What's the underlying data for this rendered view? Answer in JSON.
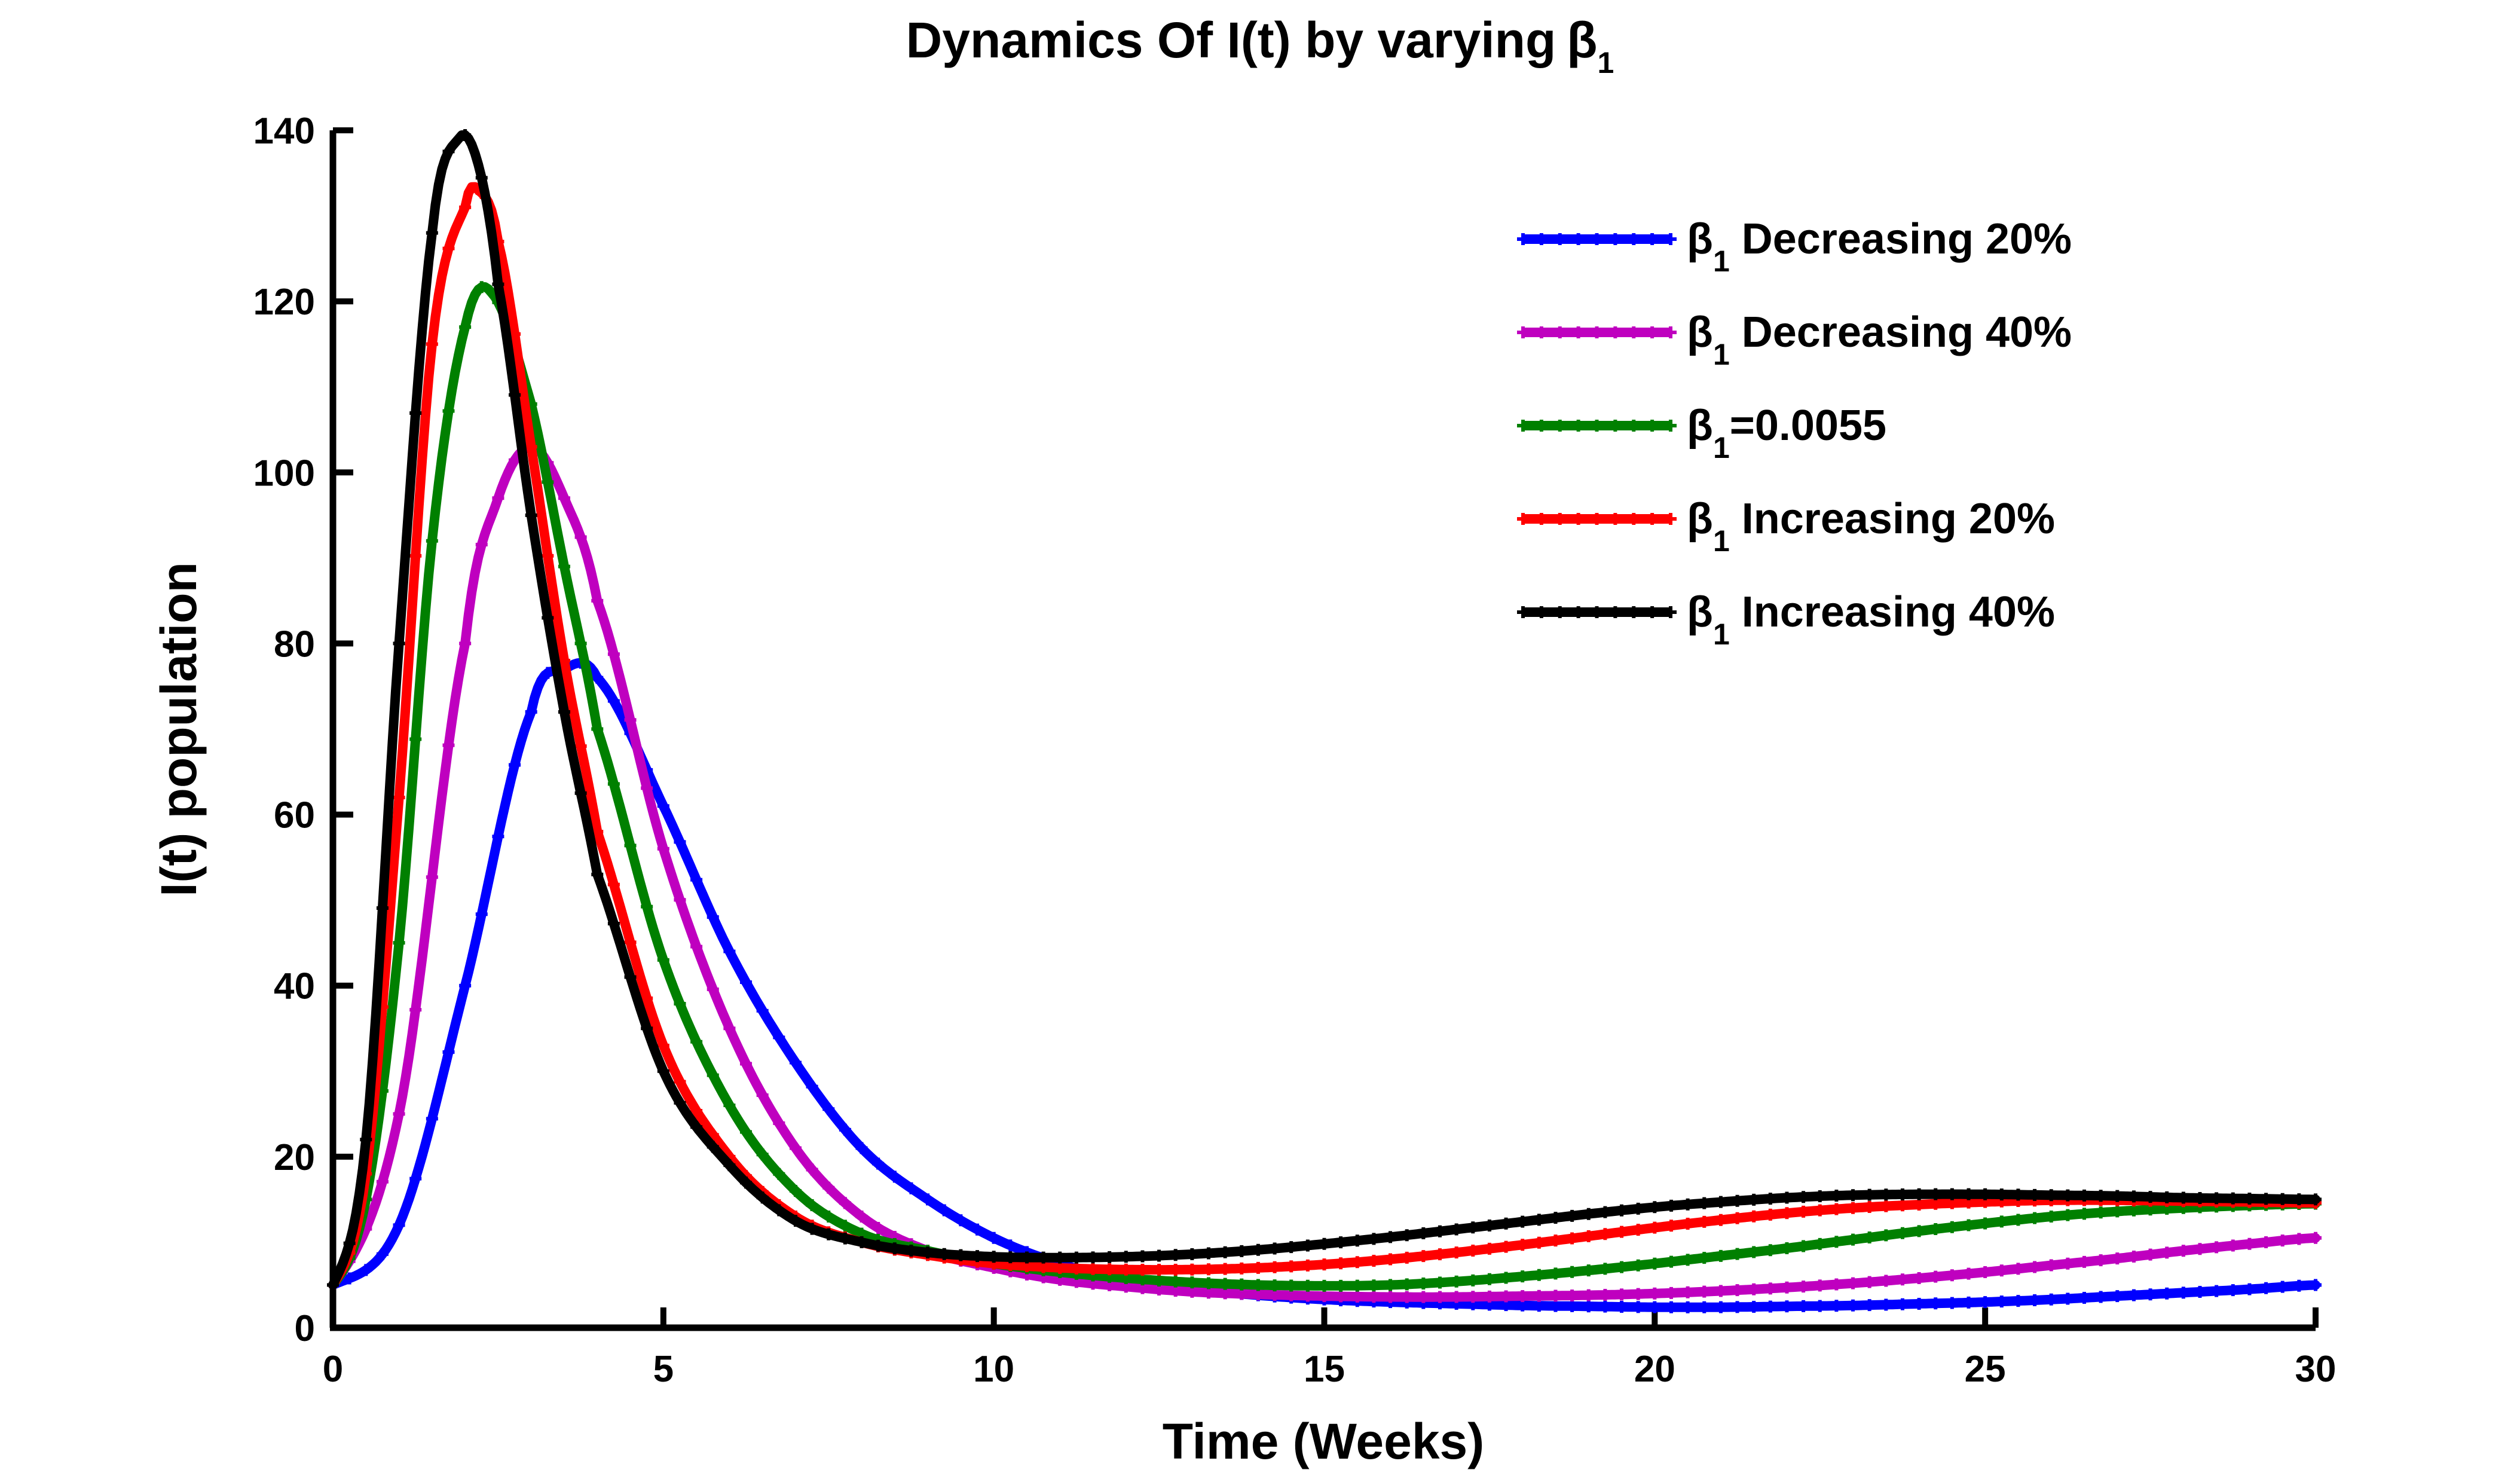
{
  "chart_data": {
    "type": "line",
    "title": "Dynamics Of I(t) by varying",
    "title_symbol": "β",
    "title_subscript": "1",
    "xlabel": "Time (Weeks)",
    "ylabel": "I(t) population",
    "xlim": [
      0,
      30
    ],
    "ylim": [
      0,
      140
    ],
    "xticks": [
      0,
      5,
      10,
      15,
      20,
      25,
      30
    ],
    "yticks": [
      0,
      20,
      40,
      60,
      80,
      100,
      120,
      140
    ],
    "grid": false,
    "legend_position": "top-right",
    "marker": "plus",
    "legend": {
      "symbol": "β",
      "subscript": "1"
    },
    "series": [
      {
        "name": "β1 Decreasing 20%",
        "label_text": " Decreasing 20%",
        "color": "#0000ff",
        "x": [
          0,
          1,
          2,
          3,
          3.5,
          4,
          5,
          6,
          7,
          8,
          9,
          10,
          11,
          12,
          13,
          14,
          15,
          16,
          17,
          18,
          19,
          20,
          21,
          22,
          23,
          24,
          25,
          26,
          27,
          28,
          29,
          30
        ],
        "y": [
          5,
          12,
          40,
          72,
          77,
          76,
          61,
          44,
          31,
          21,
          15,
          10.5,
          7.5,
          5.5,
          4.5,
          3.8,
          3.3,
          3.0,
          2.8,
          2.6,
          2.5,
          2.4,
          2.4,
          2.5,
          2.6,
          2.8,
          3.0,
          3.3,
          3.7,
          4.1,
          4.5,
          5.0
        ]
      },
      {
        "name": "β1 Decreasing 40%",
        "label_text": " Decreasing 40%",
        "color": "#bf00bf",
        "x": [
          0,
          1,
          2,
          2.5,
          3,
          3.5,
          4,
          5,
          6,
          7,
          8,
          9,
          10,
          11,
          12,
          13,
          14,
          15,
          16,
          17,
          18,
          19,
          20,
          21,
          22,
          23,
          24,
          25,
          26,
          27,
          28,
          29,
          30
        ],
        "y": [
          5,
          25,
          80,
          97,
          103,
          97,
          85,
          56,
          35,
          21,
          13,
          9,
          7,
          5.6,
          4.8,
          4.2,
          3.9,
          3.7,
          3.6,
          3.6,
          3.7,
          3.8,
          4.0,
          4.3,
          4.7,
          5.2,
          5.8,
          6.5,
          7.3,
          8.1,
          9.0,
          9.8,
          10.5
        ]
      },
      {
        "name": "β1=0.0055",
        "label_text": "=0.0055",
        "color": "#008000",
        "x": [
          0,
          0.5,
          1,
          1.5,
          2,
          2.4,
          3,
          3.5,
          4,
          5,
          6,
          7,
          8,
          9,
          10,
          11,
          12,
          13,
          14,
          15,
          16,
          17,
          18,
          19,
          20,
          21,
          22,
          23,
          24,
          25,
          26,
          27,
          28,
          29,
          30
        ],
        "y": [
          5,
          15,
          45,
          92,
          117,
          121,
          108,
          89,
          70,
          43,
          26,
          16,
          11,
          9,
          7.5,
          6.5,
          5.8,
          5.3,
          5.0,
          4.9,
          5.0,
          5.4,
          6.0,
          6.7,
          7.5,
          8.4,
          9.3,
          10.3,
          11.3,
          12.2,
          13.0,
          13.6,
          14.0,
          14.3,
          14.5
        ]
      },
      {
        "name": "β1 Increasing 20%",
        "label_text": " Increasing 20%",
        "color": "#ff0000",
        "x": [
          0,
          0.5,
          1,
          1.5,
          2,
          2.2,
          2.5,
          3,
          3.5,
          4,
          5,
          6,
          7,
          8,
          9,
          10,
          11,
          12,
          13,
          14,
          15,
          16,
          17,
          18,
          19,
          20,
          21,
          22,
          23,
          24,
          25,
          26,
          27,
          28,
          29,
          30
        ],
        "y": [
          5,
          18,
          62,
          115,
          131,
          133,
          127,
          103,
          78,
          58,
          33,
          20,
          13,
          10,
          8.5,
          7.5,
          7.0,
          6.8,
          6.8,
          7.0,
          7.4,
          8.0,
          8.8,
          9.7,
          10.7,
          11.7,
          12.6,
          13.4,
          14.0,
          14.4,
          14.7,
          14.9,
          14.9,
          14.8,
          14.7,
          14.6
        ]
      },
      {
        "name": "β1 Increasing 40%",
        "label_text": " Increasing 40%",
        "color": "#000000",
        "x": [
          0,
          0.5,
          1,
          1.5,
          1.9,
          2.2,
          2.5,
          3,
          3.5,
          4,
          5,
          6,
          7,
          8,
          9,
          10,
          11,
          12,
          13,
          14,
          15,
          16,
          17,
          18,
          19,
          20,
          21,
          22,
          23,
          24,
          25,
          26,
          27,
          28,
          29,
          30
        ],
        "y": [
          5,
          22,
          80,
          128,
          139,
          136,
          122,
          95,
          72,
          53,
          30,
          19,
          12.5,
          10,
          8.8,
          8.3,
          8.2,
          8.3,
          8.6,
          9.1,
          9.8,
          10.6,
          11.5,
          12.4,
          13.3,
          14.1,
          14.7,
          15.2,
          15.5,
          15.6,
          15.6,
          15.5,
          15.4,
          15.2,
          15.1,
          15.0
        ]
      }
    ]
  }
}
